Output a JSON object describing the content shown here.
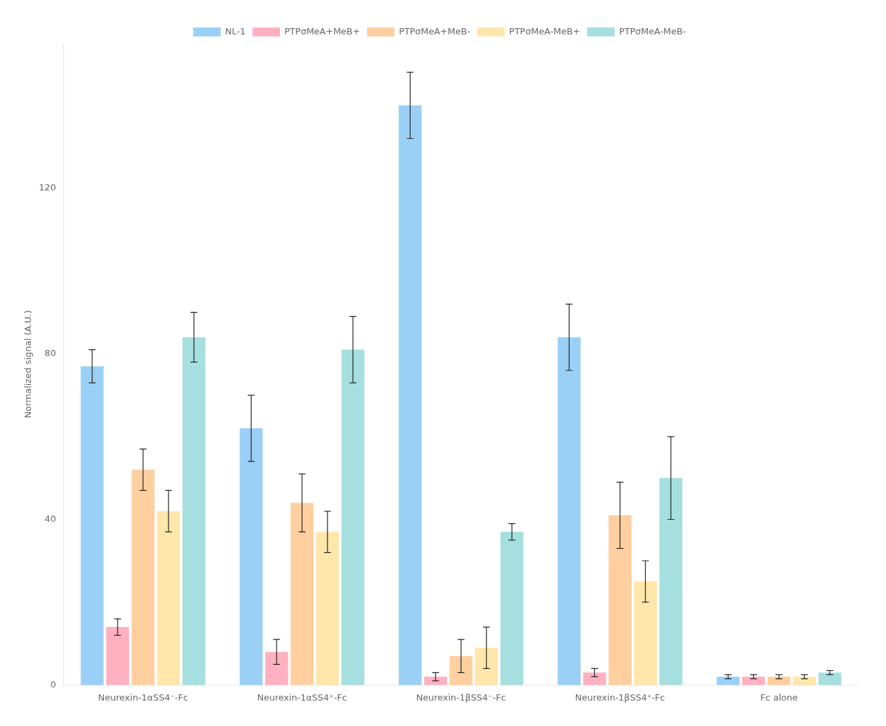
{
  "chart_data": {
    "type": "bar",
    "categories": [
      "Neurexin-1αSS4⁻-Fc",
      "Neurexin-1αSS4⁺-Fc",
      "Neurexin-1βSS4⁻-Fc",
      "Neurexin-1βSS4⁺-Fc",
      "Fc alone"
    ],
    "series": [
      {
        "name": "NL-1",
        "values": [
          77,
          62,
          140,
          84,
          2
        ],
        "errors": [
          4,
          8,
          8,
          8,
          0.5
        ]
      },
      {
        "name": "PTPσMeA+MeB+",
        "values": [
          14,
          8,
          2,
          3,
          2
        ],
        "errors": [
          2,
          3,
          1,
          1,
          0.5
        ]
      },
      {
        "name": "PTPσMeA+MeB-",
        "values": [
          52,
          44,
          7,
          41,
          2
        ],
        "errors": [
          5,
          7,
          4,
          8,
          0.5
        ]
      },
      {
        "name": "PTPσMeA-MeB+",
        "values": [
          42,
          37,
          9,
          25,
          2
        ],
        "errors": [
          5,
          5,
          5,
          5,
          0.5
        ]
      },
      {
        "name": "PTPσMeA-MeB-",
        "values": [
          84,
          81,
          37,
          50,
          3
        ],
        "errors": [
          6,
          8,
          2,
          10,
          0.5
        ]
      }
    ],
    "ylabel": "Normalized signal (A.U.)",
    "ylim": [
      0,
      155
    ],
    "yticks": [
      0,
      40,
      80,
      120
    ],
    "grid": false,
    "legend": "top"
  }
}
